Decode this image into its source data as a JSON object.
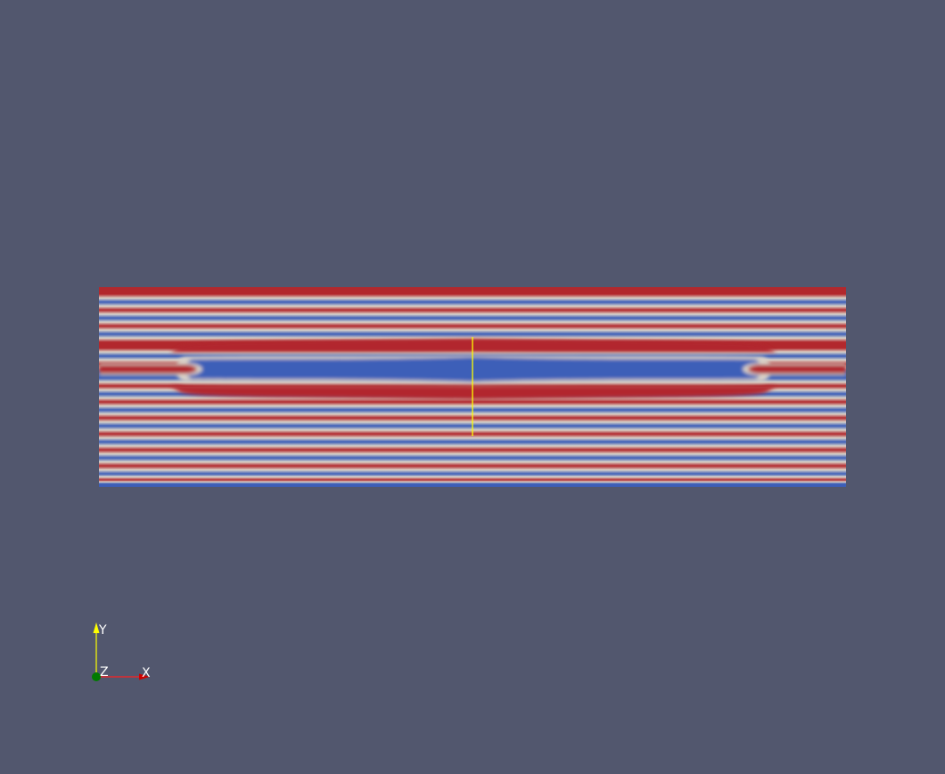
{
  "colors": {
    "background": "#52576e",
    "stripe_red": "#b2282d",
    "stripe_blue": "#3c5eb8",
    "stripe_mid": "#d9d2c8",
    "probe_line": "#ffff00",
    "axis_x": "#ff0000",
    "axis_y": "#ffff00",
    "axis_origin": "#00a000"
  },
  "orientation_axes": {
    "x_label": "X",
    "y_label": "Y",
    "z_label": "Z"
  }
}
